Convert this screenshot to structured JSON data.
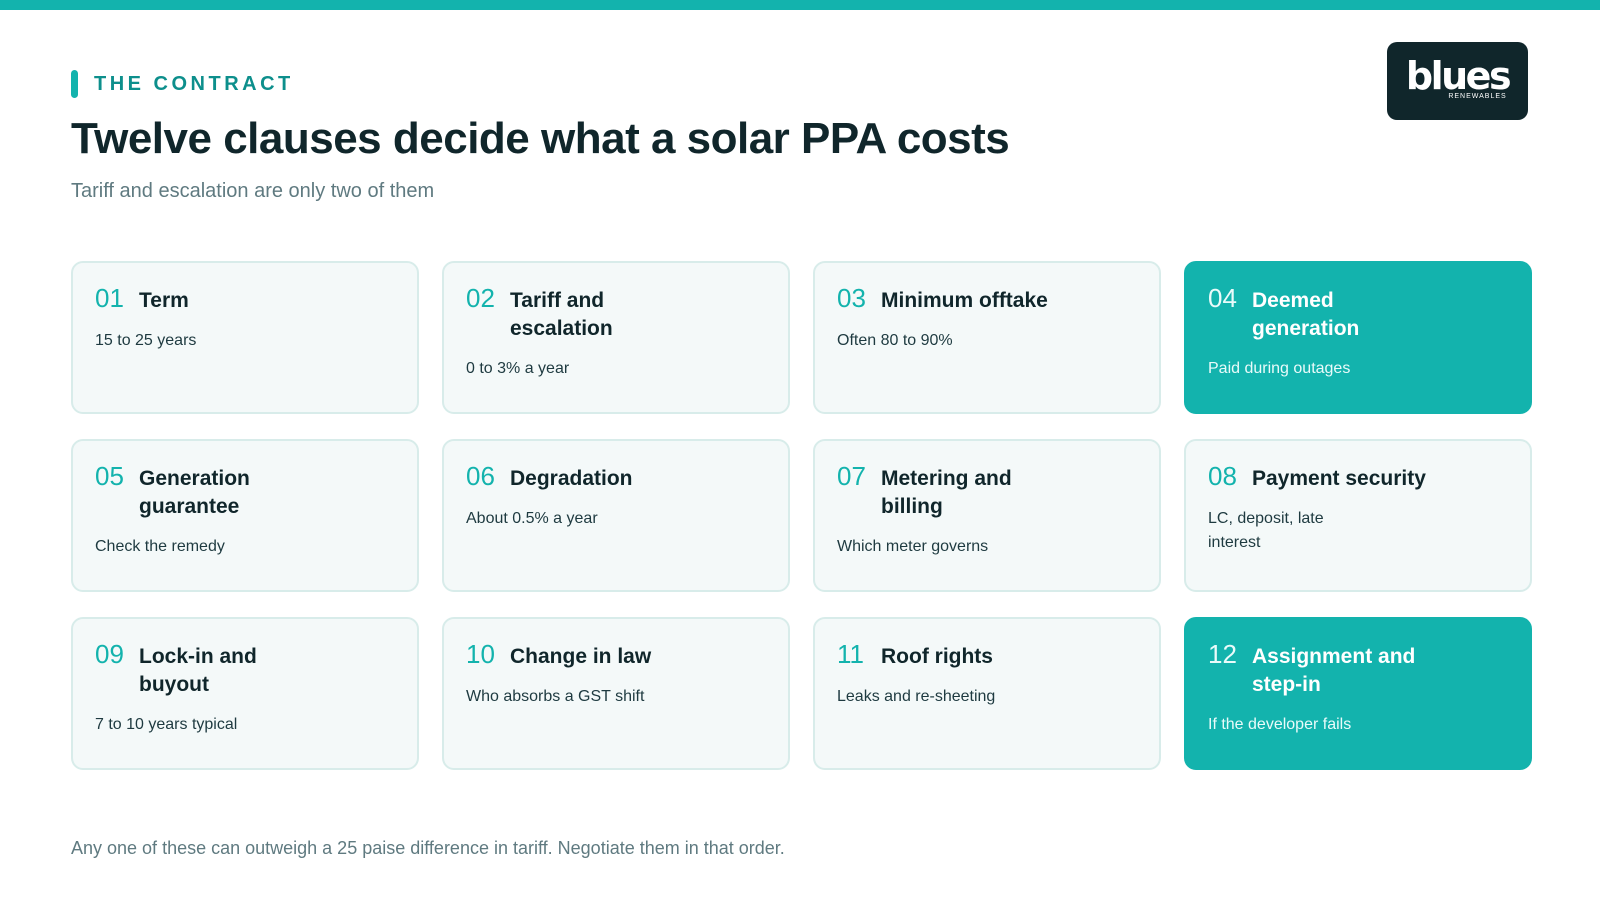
{
  "section_label": "THE CONTRACT",
  "title": "Twelve clauses decide what a solar PPA costs",
  "subtitle": "Tariff and escalation are only two of them",
  "logo": {
    "word": "blues",
    "sub": "RENEWABLES"
  },
  "colors": {
    "accent": "#13b3ad",
    "dark": "#10262b",
    "card_bg": "#f4f9f9"
  },
  "clauses": [
    {
      "num": "01",
      "label": "Term",
      "desc": "15 to 25 years",
      "highlight": false
    },
    {
      "num": "02",
      "label": "Tariff and escalation",
      "desc": "0 to 3% a year",
      "highlight": false
    },
    {
      "num": "03",
      "label": "Minimum offtake",
      "desc": "Often 80 to 90%",
      "highlight": false
    },
    {
      "num": "04",
      "label": "Deemed generation",
      "desc": "Paid during outages",
      "highlight": true
    },
    {
      "num": "05",
      "label": "Generation guarantee",
      "desc": "Check the remedy",
      "highlight": false
    },
    {
      "num": "06",
      "label": "Degradation",
      "desc": "About 0.5% a year",
      "highlight": false
    },
    {
      "num": "07",
      "label": "Metering and billing",
      "desc": "Which meter governs",
      "highlight": false
    },
    {
      "num": "08",
      "label": "Payment security",
      "desc": "LC, deposit, late interest",
      "highlight": false
    },
    {
      "num": "09",
      "label": "Lock-in and buyout",
      "desc": "7 to 10 years typical",
      "highlight": false
    },
    {
      "num": "10",
      "label": "Change in law",
      "desc": "Who absorbs a GST shift",
      "highlight": false
    },
    {
      "num": "11",
      "label": "Roof rights",
      "desc": "Leaks and re-sheeting",
      "highlight": false
    },
    {
      "num": "12",
      "label": "Assignment and step-in",
      "desc": "If the developer fails",
      "highlight": true
    }
  ],
  "footer": "Any one of these can outweigh a 25 paise difference in tariff. Negotiate them in that order."
}
